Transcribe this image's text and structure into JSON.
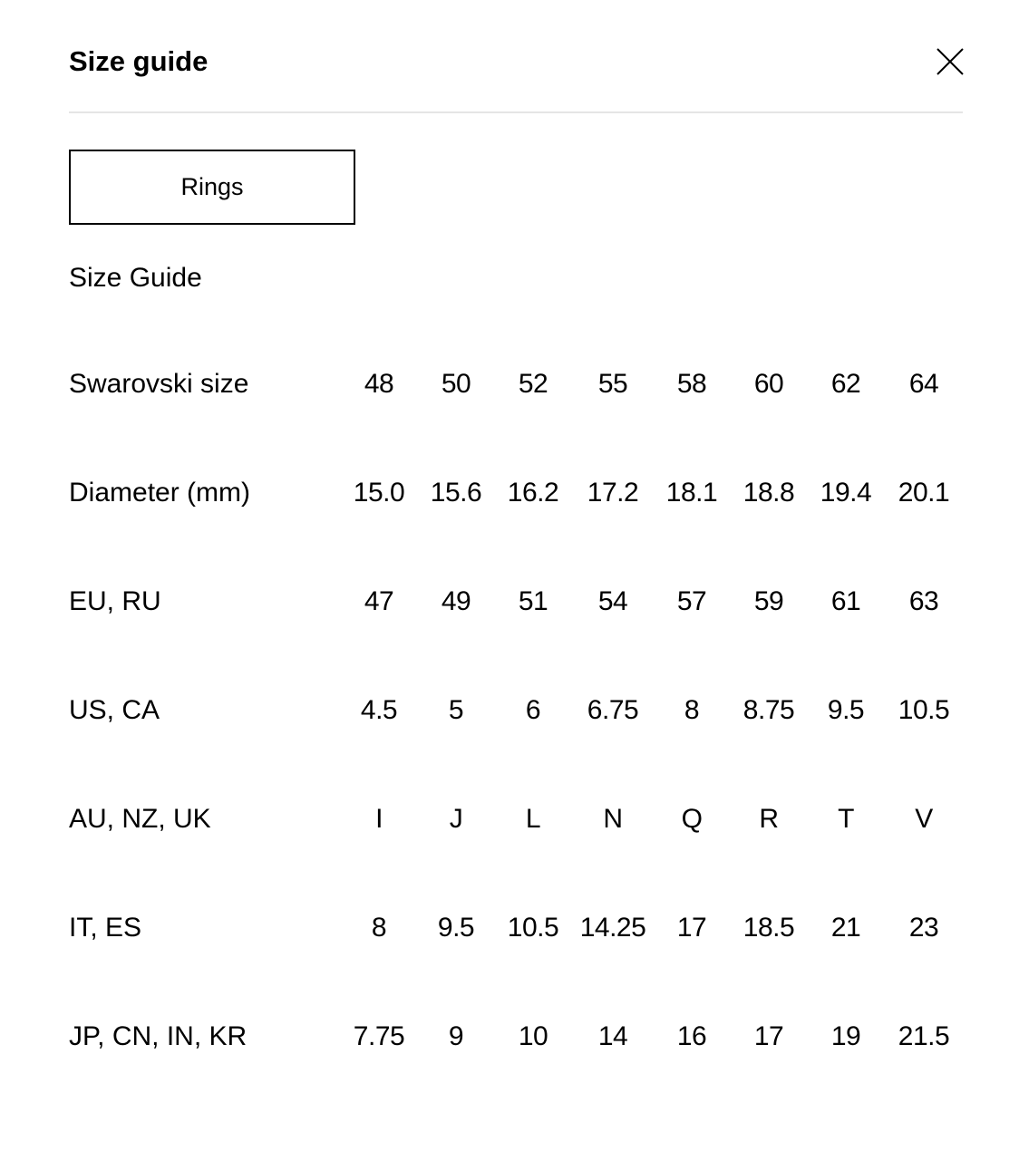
{
  "header": {
    "title": "Size guide",
    "close_icon": "close-icon"
  },
  "tabs": [
    {
      "label": "Rings",
      "selected": true
    }
  ],
  "subtitle": "Size Guide",
  "table": {
    "rows": [
      {
        "label": "Swarovski size",
        "values": [
          "48",
          "50",
          "52",
          "55",
          "58",
          "60",
          "62",
          "64"
        ]
      },
      {
        "label": "Diameter (mm)",
        "values": [
          "15.0",
          "15.6",
          "16.2",
          "17.2",
          "18.1",
          "18.8",
          "19.4",
          "20.1"
        ]
      },
      {
        "label": "EU, RU",
        "values": [
          "47",
          "49",
          "51",
          "54",
          "57",
          "59",
          "61",
          "63"
        ]
      },
      {
        "label": "US, CA",
        "values": [
          "4.5",
          "5",
          "6",
          "6.75",
          "8",
          "8.75",
          "9.5",
          "10.5"
        ]
      },
      {
        "label": "AU, NZ, UK",
        "values": [
          "I",
          "J",
          "L",
          "N",
          "Q",
          "R",
          "T",
          "V"
        ]
      },
      {
        "label": "IT, ES",
        "values": [
          "8",
          "9.5",
          "10.5",
          "14.25",
          "17",
          "18.5",
          "21",
          "23"
        ]
      },
      {
        "label": "JP, CN, IN, KR",
        "values": [
          "7.75",
          "9",
          "10",
          "14",
          "16",
          "17",
          "19",
          "21.5"
        ]
      }
    ]
  }
}
